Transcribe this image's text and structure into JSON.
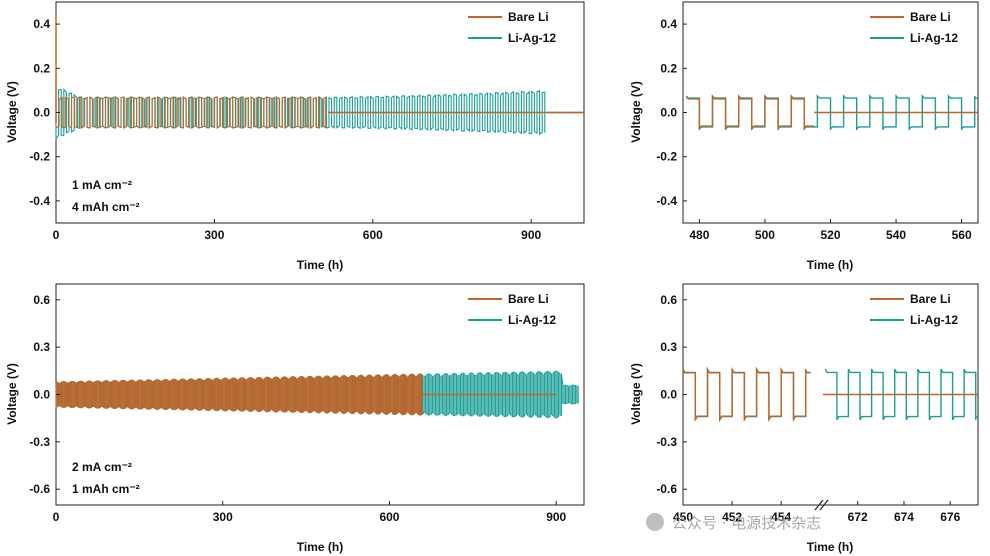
{
  "colors": {
    "bare": "#c0652a",
    "liag": "#1a9e95"
  },
  "watermark": "公众号 · 电源技术杂志",
  "chart_data": [
    {
      "id": "a",
      "type": "line",
      "xlabel": "Time (h)",
      "ylabel": "Voltage (V)",
      "xlim": [
        0,
        1000
      ],
      "ylim": [
        -0.5,
        0.5
      ],
      "xticks": [
        0,
        300,
        600,
        900
      ],
      "yticks": [
        -0.4,
        -0.2,
        0.0,
        0.2,
        0.4
      ],
      "annotations": [
        "1 mA cm⁻²",
        "4 mAh cm⁻²"
      ],
      "legend": "top-right",
      "series": [
        {
          "name": "Bare Li",
          "color_key": "bare",
          "x_end": 515,
          "amp_start": 0.07,
          "amp_end": 0.07,
          "cycles": 65,
          "flat_after": 0
        },
        {
          "name": "Li-Ag-12",
          "color_key": "liag",
          "x_end": 930,
          "amp_start": 0.07,
          "amp_end": 0.1,
          "cycles": 110,
          "tail_to": 1000
        }
      ]
    },
    {
      "id": "b",
      "type": "line",
      "xlabel": "Time (h)",
      "ylabel": "Voltage (V)",
      "xlim": [
        475,
        565
      ],
      "ylim": [
        -0.5,
        0.5
      ],
      "xticks": [
        480,
        500,
        520,
        540,
        560
      ],
      "yticks": [
        -0.4,
        -0.2,
        0.0,
        0.2,
        0.4
      ],
      "legend": "top-right",
      "series": [
        {
          "name": "Bare Li",
          "color_key": "bare",
          "x_start": 476,
          "x_end": 515,
          "amp": 0.065,
          "period": 8,
          "flat_after": 565
        },
        {
          "name": "Li-Ag-12",
          "color_key": "liag",
          "x_start": 476,
          "x_end": 565,
          "amp": 0.065,
          "period": 8
        }
      ]
    },
    {
      "id": "c",
      "type": "line",
      "xlabel": "Time (h)",
      "ylabel": "Voltage (V)",
      "xlim": [
        0,
        950
      ],
      "ylim": [
        -0.7,
        0.7
      ],
      "xticks": [
        0,
        300,
        600,
        900
      ],
      "yticks": [
        -0.6,
        -0.3,
        0.0,
        0.3,
        0.6
      ],
      "annotations": [
        "2 mA cm⁻²",
        "1 mAh cm⁻²"
      ],
      "legend": "top-right",
      "series": [
        {
          "name": "Bare Li",
          "color_key": "bare",
          "x_end": 660,
          "amp_start": 0.08,
          "amp_end": 0.13,
          "flat_after": 900
        },
        {
          "name": "Li-Ag-12",
          "color_key": "liag",
          "x_end": 940,
          "amp_start": 0.08,
          "amp_end": 0.15
        }
      ]
    },
    {
      "id": "d",
      "type": "line",
      "xlabel": "Time (h)",
      "ylabel": "Voltage (V)",
      "xlim_segments": [
        [
          450,
          455.5
        ],
        [
          670.5,
          677.2
        ]
      ],
      "xtick_labels": [
        "450",
        "452",
        "454",
        "672",
        "674",
        "676"
      ],
      "xticks_seg1": [
        450,
        452,
        454
      ],
      "xticks_seg2": [
        672,
        674,
        676
      ],
      "ylim": [
        -0.7,
        0.7
      ],
      "yticks": [
        -0.6,
        -0.3,
        0.0,
        0.3,
        0.6
      ],
      "legend": "top-right",
      "series": [
        {
          "name": "Bare Li",
          "color_key": "bare",
          "amp": 0.14,
          "period": 1.0,
          "flat_after_break": true
        },
        {
          "name": "Li-Ag-12",
          "color_key": "liag",
          "amp": 0.14,
          "period": 1.0
        }
      ]
    }
  ]
}
